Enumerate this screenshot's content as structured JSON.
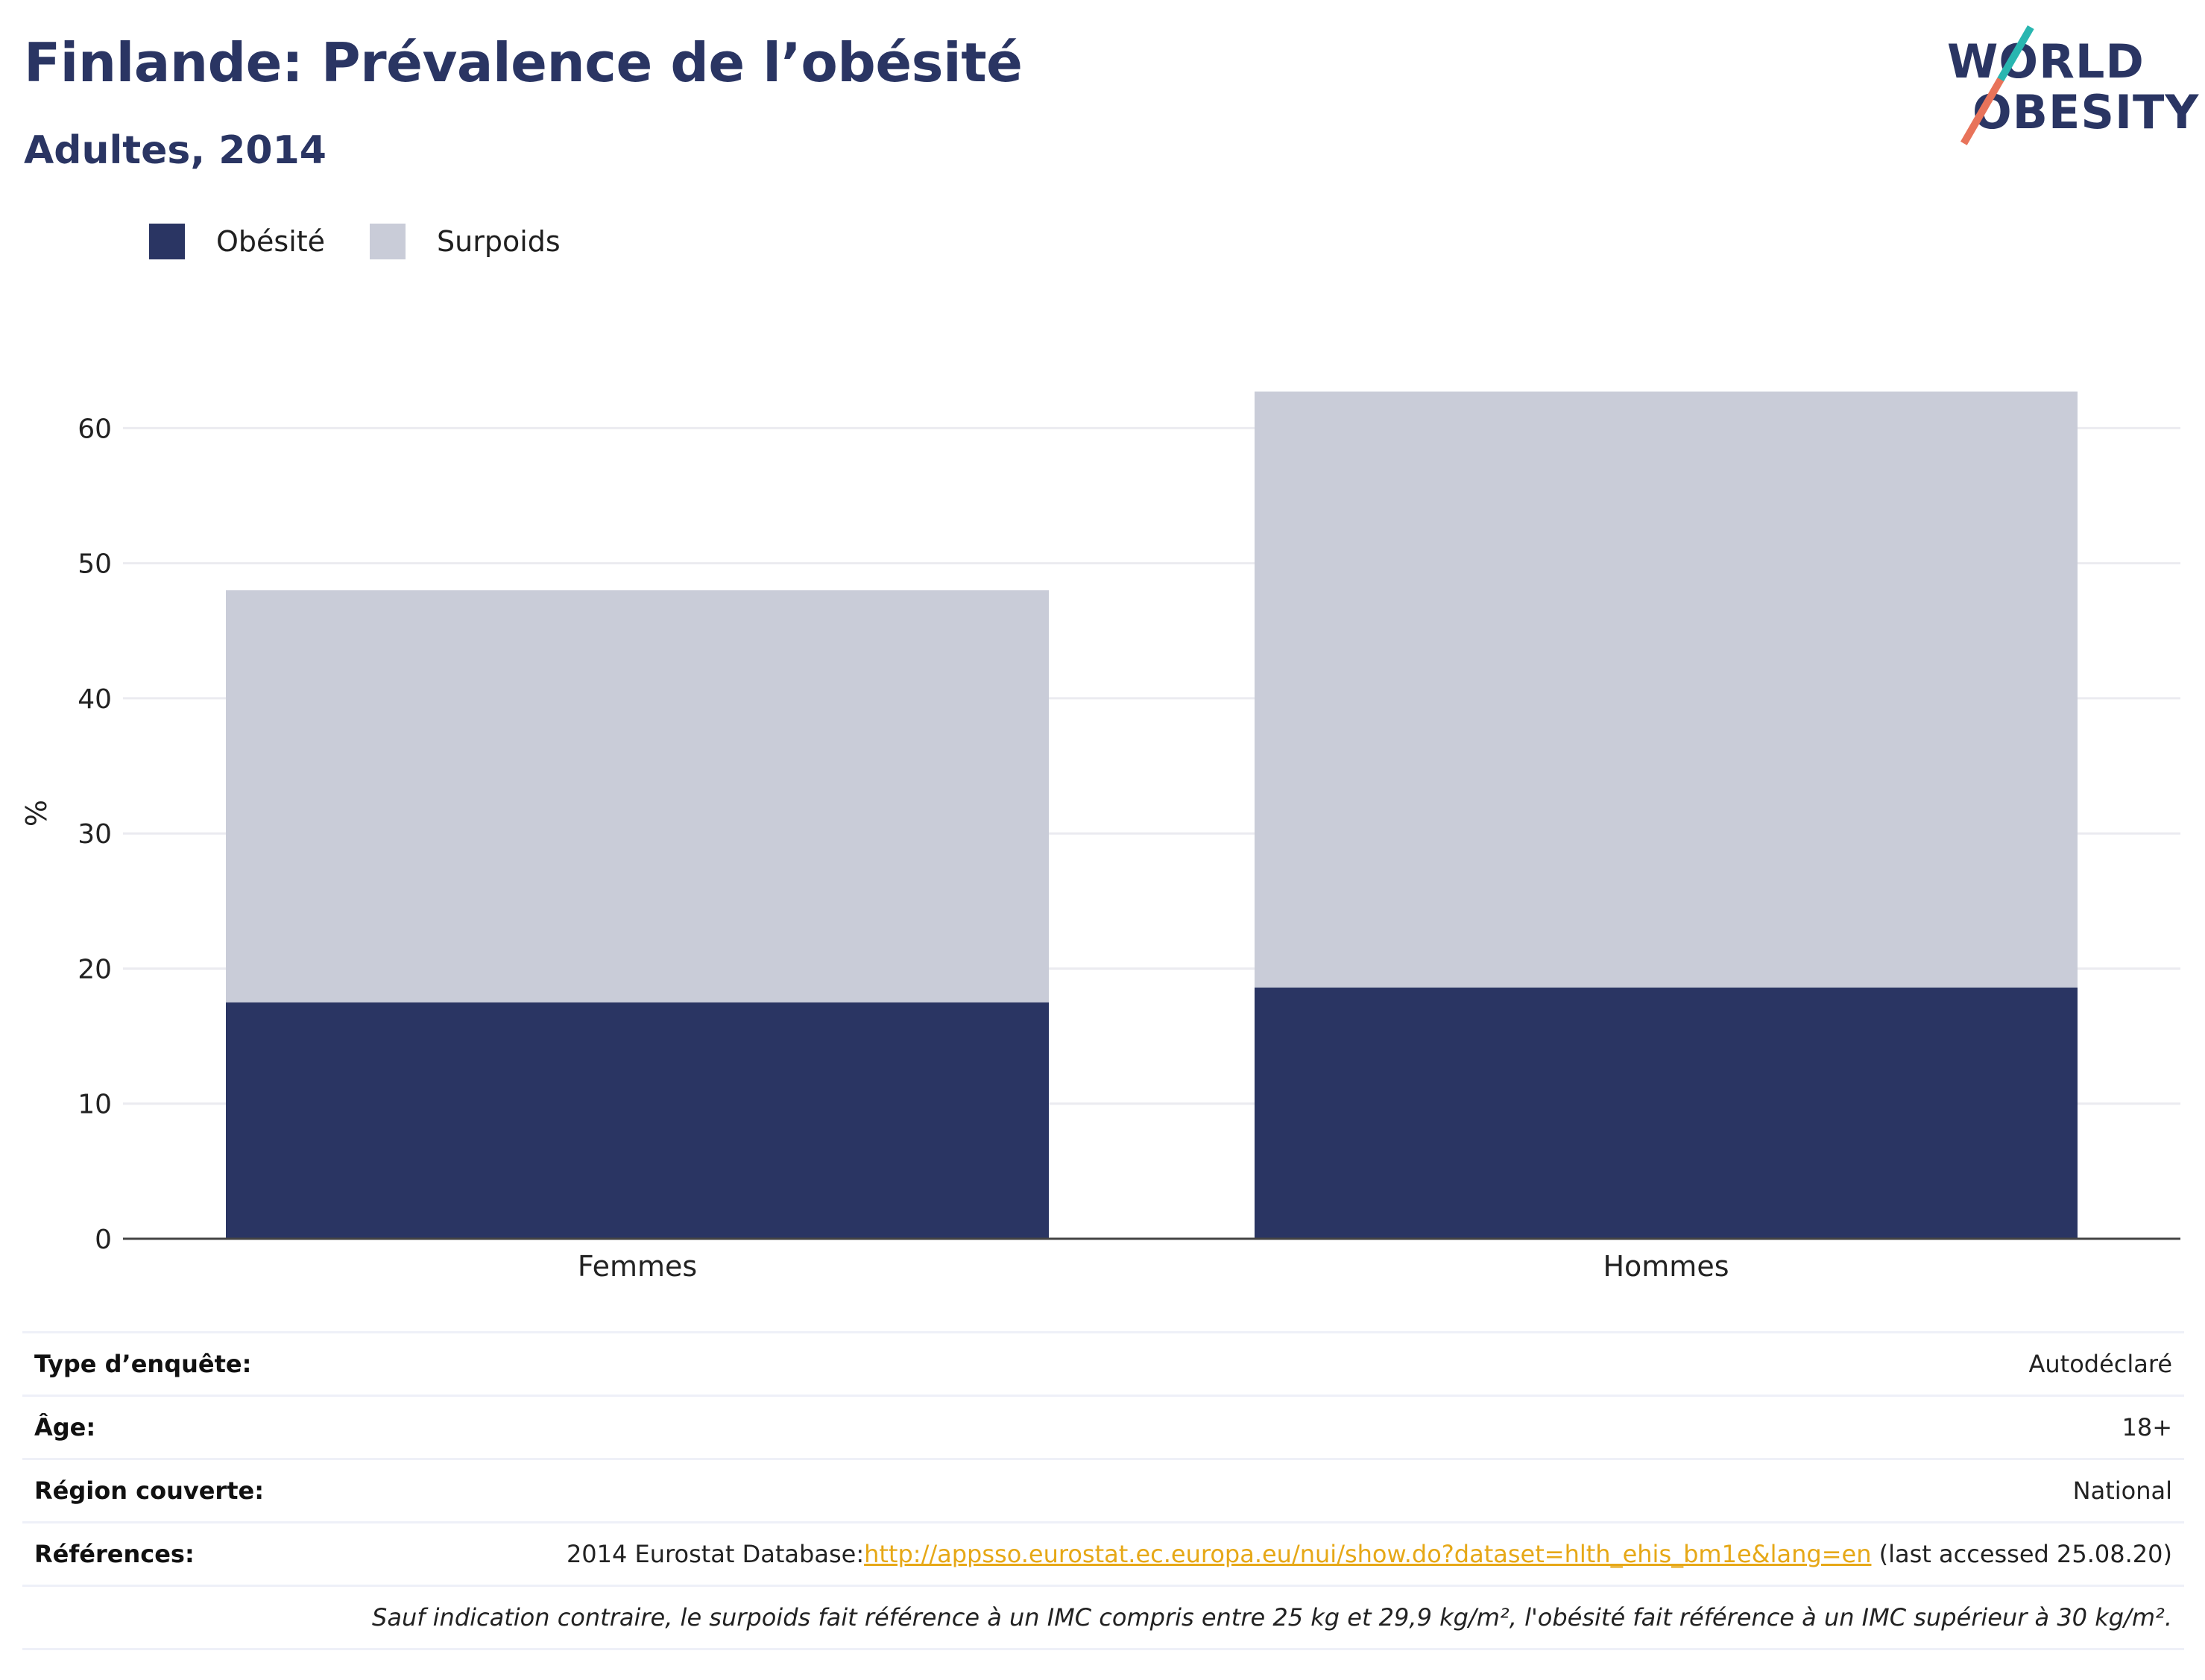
{
  "title": "Finlande: Prévalence de l’obésité",
  "subtitle": "Adultes, 2014",
  "logo": {
    "line1": "WORLD",
    "line2": "OBESITY"
  },
  "legend": [
    {
      "label": "Obésité",
      "color": "#2a3563"
    },
    {
      "label": "Surpoids",
      "color": "#c9ccd8"
    }
  ],
  "chart_data": {
    "type": "bar",
    "stacked": true,
    "categories": [
      "Femmes",
      "Hommes"
    ],
    "series": [
      {
        "name": "Obésité",
        "color": "#2a3563",
        "values": [
          17.5,
          18.6
        ]
      },
      {
        "name": "Surpoids",
        "color": "#c9ccd8",
        "values": [
          30.5,
          44.1
        ]
      }
    ],
    "ylabel": "%",
    "ylim": [
      0,
      63
    ],
    "yticks": [
      0,
      10,
      20,
      30,
      40,
      50,
      60
    ],
    "grid": true,
    "legend_position": "top-left"
  },
  "meta": {
    "survey_label": "Type d’enquête:",
    "survey_value": "Autodéclaré",
    "age_label": "Âge:",
    "age_value": "18+",
    "region_label": "Région couverte:",
    "region_value": "National",
    "refs_label": "Références:",
    "refs_prefix": "2014 Eurostat Database:",
    "refs_link": "http://appsso.eurostat.ec.europa.eu/nui/show.do?dataset=hlth_ehis_bm1e&lang=en",
    "refs_suffix": " (last accessed 25.08.20)",
    "note": "Sauf indication contraire, le surpoids fait référence à un IMC compris entre 25 kg et 29,9 kg/m², l'obésité fait référence à un IMC supérieur à 30 kg/m²."
  }
}
